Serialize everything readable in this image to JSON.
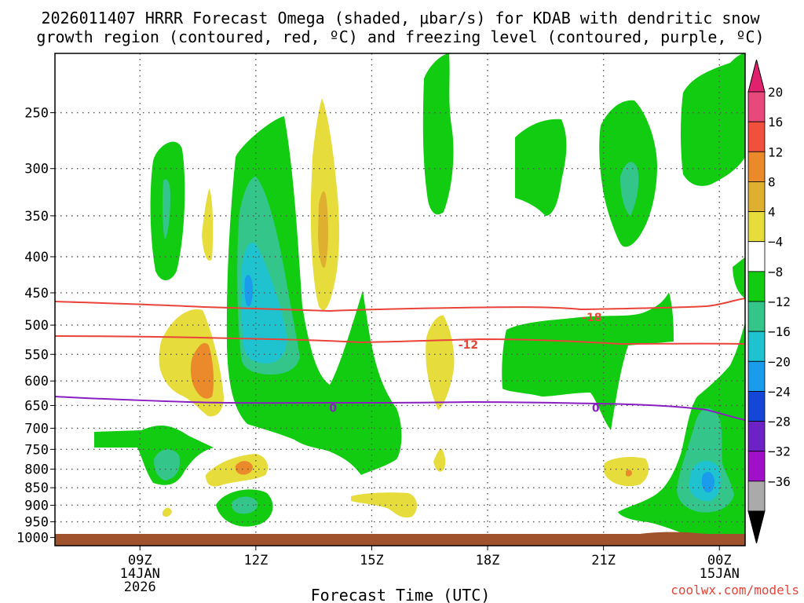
{
  "chart_data": {
    "type": "contour",
    "title_line1": "2026011407 HRRR Forecast Omega (shaded, μbar/s) for KDAB with dendritic snow",
    "title_line2": "growth region (contoured, red, ºC) and freezing level (contoured, purple, ºC)",
    "xlabel": "Forecast Time (UTC)",
    "credit": "coolwx.com/models",
    "y_axis": {
      "unit": "hPa",
      "ticks": [
        250,
        300,
        350,
        400,
        450,
        500,
        550,
        600,
        650,
        700,
        750,
        800,
        850,
        900,
        950,
        1000
      ]
    },
    "x_axis": {
      "unit": "UTC hour offset from 2026-01-14 07Z",
      "range": [
        0,
        18
      ],
      "ticks": [
        {
          "hour": 2,
          "label": "09Z",
          "sub1": "14JAN",
          "sub2": "2026"
        },
        {
          "hour": 5,
          "label": "12Z",
          "sub1": "",
          "sub2": ""
        },
        {
          "hour": 8,
          "label": "15Z",
          "sub1": "",
          "sub2": ""
        },
        {
          "hour": 11,
          "label": "18Z",
          "sub1": "",
          "sub2": ""
        },
        {
          "hour": 14,
          "label": "21Z",
          "sub1": "",
          "sub2": ""
        },
        {
          "hour": 17,
          "label": "00Z",
          "sub1": "15JAN",
          "sub2": ""
        }
      ]
    },
    "colorbar": {
      "labels": [
        "20",
        "16",
        "12",
        "8",
        "4",
        "−4",
        "−8",
        "−12",
        "−16",
        "−20",
        "−24",
        "−28",
        "−32",
        "−36"
      ],
      "colors": [
        "#e7497a",
        "#f0503c",
        "#ea8a2a",
        "#dfb030",
        "#e6dc3c",
        "#ffffff",
        "#11cc11",
        "#33c58a",
        "#1ec3cf",
        "#1a9bec",
        "#1446d8",
        "#6d22c6",
        "#a010c8",
        "#aaaaaa",
        "#000000"
      ],
      "top_arrow_color": "#e0226e",
      "bottom_arrow_color": "#000000"
    },
    "contour_lines": [
      {
        "name": "dgz",
        "value": "−18",
        "label": "-18",
        "color": "#e8443a",
        "hour": 13.7,
        "hpa": 487
      },
      {
        "name": "dgz",
        "value": "−12",
        "label": "-12",
        "color": "#e8443a",
        "hour": 10.5,
        "hpa": 533
      },
      {
        "name": "freezing-level",
        "value": "0",
        "label": "0",
        "color": "#8a1fc0",
        "hour": 7.0,
        "hpa": 655
      },
      {
        "name": "freezing-level",
        "value": "0",
        "label": "0",
        "color": "#8a1fc0",
        "hour": 13.8,
        "hpa": 655
      }
    ],
    "omega_regions": [
      {
        "category": "-4 to -8",
        "color": "#11cc11"
      },
      {
        "category": "-8 to -12",
        "color": "#33c58a"
      },
      {
        "category": "-12 to -16",
        "color": "#1ec3cf"
      },
      {
        "category": "-16 to -20",
        "color": "#1a9bec"
      },
      {
        "category": "4 to 8",
        "color": "#e6dc3c"
      },
      {
        "category": "8 to 12",
        "color": "#dfb030"
      },
      {
        "category": "12 to 16",
        "color": "#ea8a2a"
      }
    ],
    "terrain_color": "#a0522d",
    "grid": true
  }
}
